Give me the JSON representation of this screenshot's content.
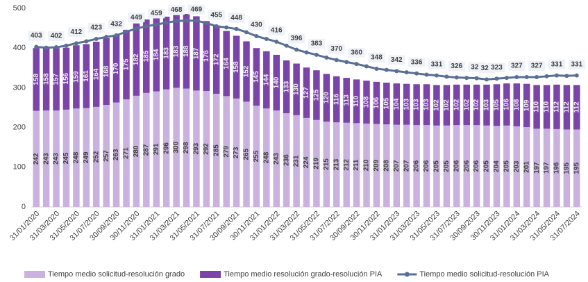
{
  "chart_data": {
    "type": "bar",
    "categories": [
      "31/01/2020",
      null,
      "31/03/2020",
      null,
      "31/05/2020",
      null,
      "31/07/2020",
      null,
      "30/09/2020",
      null,
      "30/11/2020",
      null,
      "31/01/2021",
      null,
      "31/03/2021",
      null,
      "31/05/2021",
      null,
      "31/07/2021",
      null,
      "30/09/2021",
      null,
      "30/11/2021",
      null,
      "31/01/2022",
      null,
      "31/03/2022",
      null,
      "31/05/2022",
      null,
      "31/07/2022",
      null,
      "30/09/2022",
      null,
      "30/11/2022",
      null,
      "31/01/2023",
      null,
      "31/03/2023",
      null,
      "31/05/2023",
      null,
      "31/07/2023",
      null,
      "30/09/2023",
      null,
      "30/11/2023",
      null,
      "31/01/2024",
      null,
      "31/03/2024",
      null,
      "31/05/2024",
      null,
      "31/07/2024"
    ],
    "series": [
      {
        "name": "Tiempo medio solicitud-resolución grado",
        "color": "#c9b3de",
        "stack": true,
        "values": [
          242,
          243,
          243,
          245,
          248,
          249,
          252,
          257,
          263,
          271,
          280,
          287,
          291,
          296,
          300,
          298,
          293,
          292,
          285,
          279,
          273,
          265,
          255,
          248,
          243,
          236,
          231,
          224,
          219,
          215,
          213,
          212,
          211,
          210,
          209,
          208,
          207,
          207,
          206,
          206,
          205,
          205,
          206,
          206,
          206,
          205,
          204,
          205,
          203,
          201,
          197,
          197,
          196,
          195,
          195
        ]
      },
      {
        "name": "Tiempo medio resolución grado-resolución PIA",
        "color": "#7a44a8",
        "stack": true,
        "values": [
          158,
          158,
          157,
          156,
          159,
          161,
          164,
          168,
          170,
          175,
          182,
          185,
          184,
          183,
          183,
          188,
          187,
          176,
          172,
          164,
          158,
          152,
          145,
          144,
          140,
          133,
          130,
          127,
          125,
          120,
          116,
          113,
          110,
          108,
          106,
          105,
          104,
          103,
          103,
          103,
          102,
          102,
          102,
          102,
          102,
          103,
          105,
          106,
          108,
          109,
          110,
          110,
          112,
          112,
          112
        ]
      },
      {
        "name": "Tiempo medio solicitud-resolución PIA",
        "color": "#5a6f96",
        "line": true,
        "values": [
          403,
          401,
          402,
          406,
          412,
          417,
          423,
          428,
          432,
          441,
          449,
          455,
          459,
          464,
          468,
          469,
          469,
          463,
          455,
          452,
          448,
          440,
          430,
          423,
          416,
          406,
          396,
          389,
          383,
          376,
          370,
          365,
          360,
          354,
          348,
          345,
          342,
          339,
          336,
          333,
          331,
          328,
          326,
          325,
          324,
          321,
          323,
          325,
          327,
          327,
          327,
          329,
          331,
          330,
          331
        ],
        "value_labels": [
          "403",
          null,
          "402",
          null,
          "412",
          null,
          "423",
          null,
          "432",
          null,
          "449",
          null,
          "459",
          null,
          "468",
          null,
          "469",
          null,
          "455",
          null,
          "448",
          null,
          "430",
          null,
          "416",
          null,
          "396",
          null,
          "383",
          null,
          "370",
          null,
          "360",
          null,
          "348",
          null,
          "342",
          null,
          "336",
          null,
          "331",
          null,
          "326",
          null,
          "324",
          "321",
          "323",
          null,
          "327",
          null,
          "327",
          null,
          "331",
          null,
          "331"
        ]
      }
    ],
    "ylim": [
      0,
      500
    ],
    "yticks": [
      0,
      100,
      200,
      300,
      400,
      500
    ],
    "grid": false,
    "legend": "bottom"
  }
}
